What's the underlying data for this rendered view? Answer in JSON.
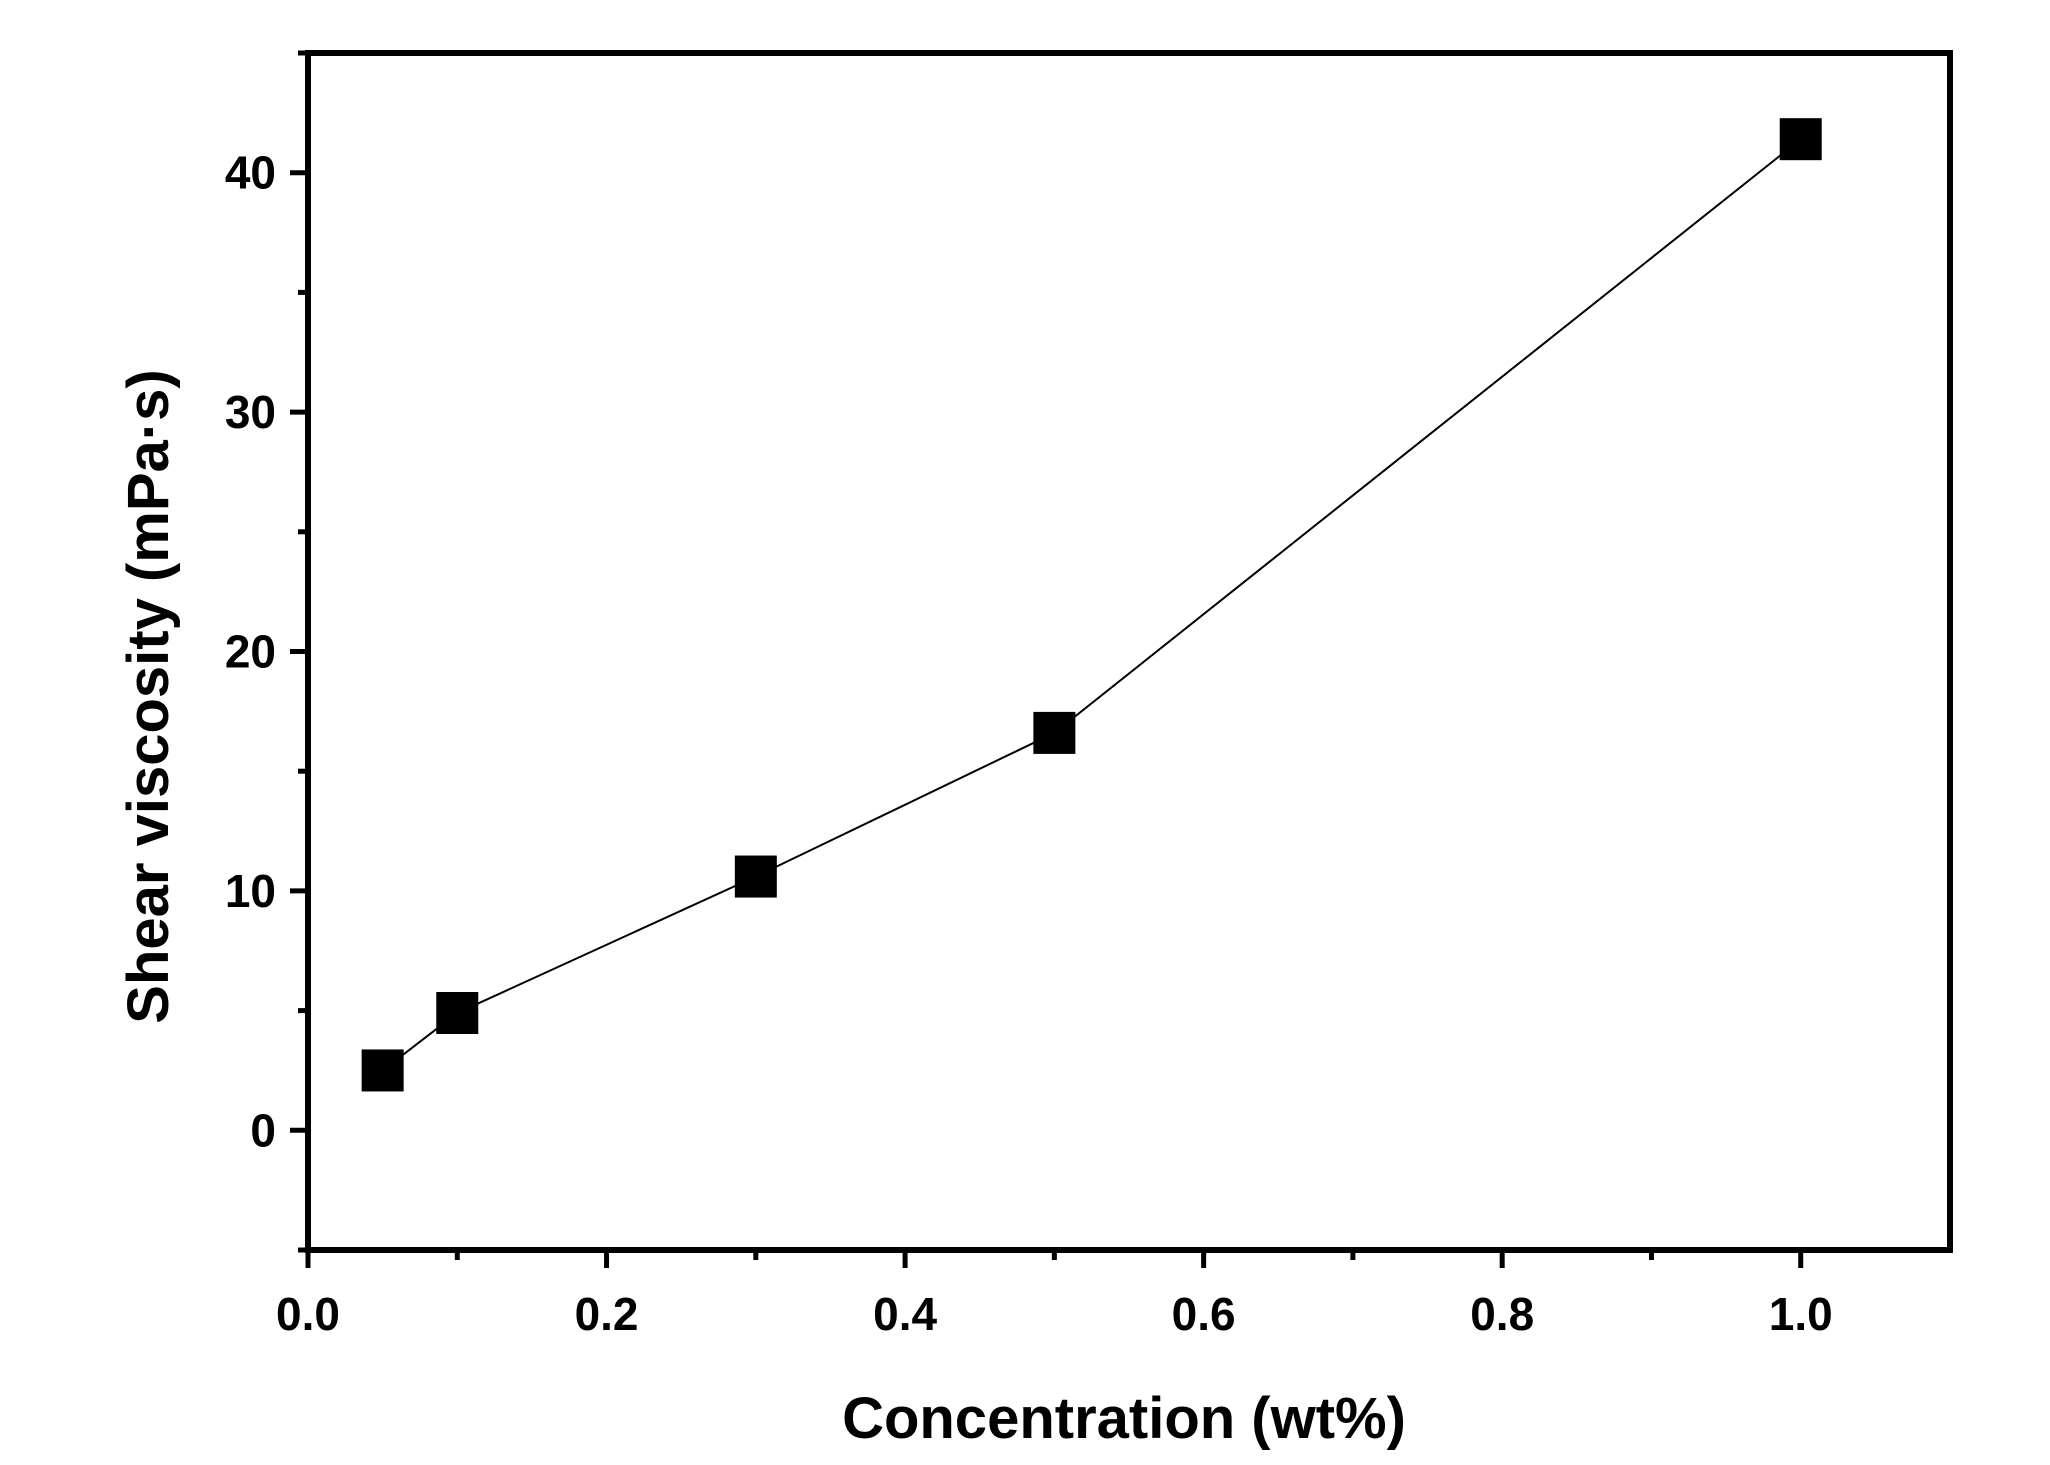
{
  "chart_data": {
    "type": "line",
    "title": "",
    "xlabel": "Concentration (wt%)",
    "ylabel": "Shear viscosity (mPa·s)",
    "xlim": [
      0.0,
      1.1
    ],
    "ylim": [
      -5,
      45
    ],
    "x_ticks": [
      0.0,
      0.2,
      0.4,
      0.6,
      0.8,
      1.0
    ],
    "x_tick_labels": [
      "0.0",
      "0.2",
      "0.4",
      "0.6",
      "0.8",
      "1.0"
    ],
    "x_minor_ticks": [
      0.1,
      0.3,
      0.5,
      0.7,
      0.9
    ],
    "y_ticks": [
      0,
      10,
      20,
      30,
      40
    ],
    "y_tick_labels": [
      "0",
      "10",
      "20",
      "30",
      "40"
    ],
    "y_minor_ticks": [
      -5,
      5,
      15,
      25,
      35,
      45
    ],
    "grid": false,
    "series": [
      {
        "name": "Shear viscosity",
        "marker": "square",
        "x": [
          0.05,
          0.1,
          0.3,
          0.5,
          1.0
        ],
        "y": [
          2.5,
          4.9,
          10.6,
          16.6,
          41.4
        ]
      }
    ],
    "colors": {
      "line": "#000000",
      "marker": "#000000",
      "axis": "#000000"
    }
  }
}
